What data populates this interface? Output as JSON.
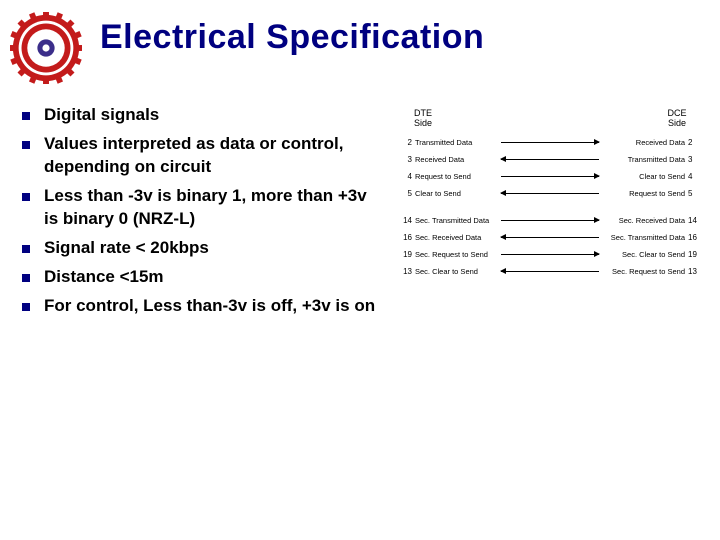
{
  "title": {
    "text": "Electrical Specification",
    "color": "#000080",
    "fontsize": 34
  },
  "logo": {
    "outer_color": "#c31b1b",
    "ring_color": "#c31b1b",
    "inner_bg": "#ffffff",
    "inner_center": "#3b2e8a"
  },
  "bullets": {
    "marker_color": "#000080",
    "text_color": "#000000",
    "fontsize": 17,
    "items": [
      "Digital signals",
      "Values interpreted as data or control, depending on circuit",
      "Less than -3v is binary 1, more than +3v is binary 0 (NRZ-L)",
      "Signal rate < 20kbps",
      "Distance <15m",
      "For control, Less than-3v is off, +3v is on"
    ]
  },
  "diagram": {
    "header_left": "DTE\nSide",
    "header_right": "DCE\nSide",
    "groups": [
      [
        {
          "lpin": "2",
          "llabel": "Transmitted Data",
          "dir": "right",
          "rlabel": "Received Data",
          "rpin": "2"
        },
        {
          "lpin": "3",
          "llabel": "Received Data",
          "dir": "left",
          "rlabel": "Transmitted Data",
          "rpin": "3"
        },
        {
          "lpin": "4",
          "llabel": "Request to Send",
          "dir": "right",
          "rlabel": "Clear to Send",
          "rpin": "4"
        },
        {
          "lpin": "5",
          "llabel": "Clear to Send",
          "dir": "left",
          "rlabel": "Request to Send",
          "rpin": "5"
        }
      ],
      [
        {
          "lpin": "14",
          "llabel": "Sec. Transmitted Data",
          "dir": "right",
          "rlabel": "Sec. Received Data",
          "rpin": "14"
        },
        {
          "lpin": "16",
          "llabel": "Sec. Received Data",
          "dir": "left",
          "rlabel": "Sec. Transmitted Data",
          "rpin": "16"
        },
        {
          "lpin": "19",
          "llabel": "Sec. Request to Send",
          "dir": "right",
          "rlabel": "Sec. Clear to Send",
          "rpin": "19"
        },
        {
          "lpin": "13",
          "llabel": "Sec. Clear to Send",
          "dir": "left",
          "rlabel": "Sec. Request to Send",
          "rpin": "13"
        }
      ]
    ]
  }
}
